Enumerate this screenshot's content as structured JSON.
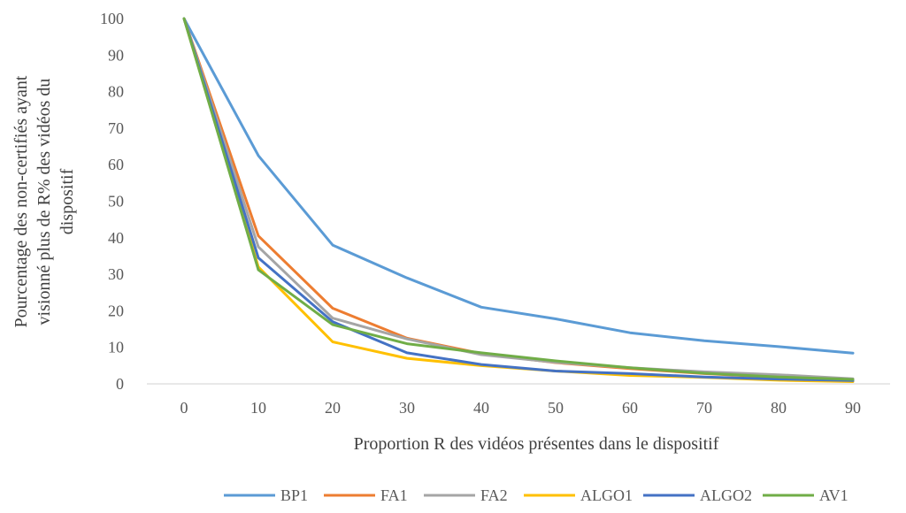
{
  "chart_data": {
    "type": "line",
    "x": [
      0,
      10,
      20,
      30,
      40,
      50,
      60,
      70,
      80,
      90
    ],
    "xlabel": "Proportion R des vidéos présentes dans le dispositif",
    "ylabel_lines": [
      "Pourcentage des non-certifiés ayant",
      "visionné plus de R% des vidéos du",
      "dispositif"
    ],
    "ylim": [
      0,
      100
    ],
    "yticks": [
      0,
      10,
      20,
      30,
      40,
      50,
      60,
      70,
      80,
      90,
      100
    ],
    "grid": false,
    "legend_position": "bottom",
    "series": [
      {
        "name": "BP1",
        "color": "#5B9BD5",
        "values": [
          100,
          62.5,
          38,
          29,
          21,
          17.8,
          14,
          11.8,
          10.2,
          8.4
        ]
      },
      {
        "name": "FA1",
        "color": "#ED7D31",
        "values": [
          100,
          40.5,
          20.7,
          12.5,
          8.3,
          5.8,
          4.2,
          2.8,
          1.8,
          1.2
        ]
      },
      {
        "name": "FA2",
        "color": "#A5A5A5",
        "values": [
          100,
          37.5,
          18,
          12.3,
          8,
          5.9,
          4.4,
          3.3,
          2.5,
          1.4
        ]
      },
      {
        "name": "ALGO1",
        "color": "#FFC000",
        "values": [
          100,
          32,
          11.5,
          7,
          5,
          3.5,
          2.3,
          1.8,
          1,
          0.6
        ]
      },
      {
        "name": "ALGO2",
        "color": "#4472C4",
        "values": [
          100,
          34.5,
          17,
          8.5,
          5.3,
          3.5,
          2.8,
          1.9,
          1.3,
          0.9
        ]
      },
      {
        "name": "AV1",
        "color": "#70AD47",
        "values": [
          100,
          31.2,
          16.2,
          11,
          8.5,
          6.3,
          4.4,
          2.9,
          1.9,
          1.2
        ]
      }
    ]
  }
}
